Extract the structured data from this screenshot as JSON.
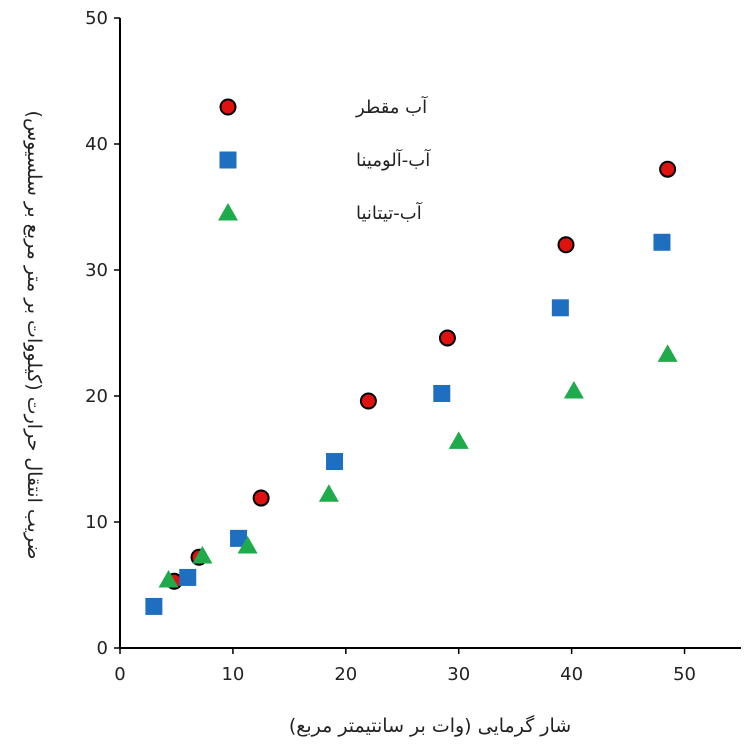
{
  "chart_data": {
    "type": "scatter",
    "xlabel": "شار گرمایی (وات بر سانتیمتر مربع)",
    "ylabel": "ضریب انتقال حرارت (کیلووات بر متر مربع بر سلسیوس)",
    "xlim": [
      0,
      55
    ],
    "ylim": [
      0,
      50
    ],
    "xticks": [
      0,
      10,
      20,
      30,
      40,
      50
    ],
    "yticks": [
      0,
      10,
      20,
      30,
      40,
      50
    ],
    "grid": false,
    "legend_position": "top-left",
    "series": [
      {
        "name": "آب مقطر",
        "marker": "circle",
        "color": "#e0120f",
        "points": [
          [
            4.8,
            5.3
          ],
          [
            7,
            7.2
          ],
          [
            12.5,
            11.9
          ],
          [
            22,
            19.6
          ],
          [
            29,
            24.6
          ],
          [
            39.5,
            32
          ],
          [
            48.5,
            38
          ]
        ]
      },
      {
        "name": "آب-آلومینا",
        "marker": "square",
        "color": "#1f6fc0",
        "points": [
          [
            3,
            3.3
          ],
          [
            6,
            5.6
          ],
          [
            10.5,
            8.7
          ],
          [
            19,
            14.8
          ],
          [
            28.5,
            20.2
          ],
          [
            39,
            27
          ],
          [
            48,
            32.2
          ]
        ]
      },
      {
        "name": "آب-تیتانیا",
        "marker": "triangle",
        "color": "#1faa4b",
        "points": [
          [
            4.3,
            5.4
          ],
          [
            7.3,
            7.3
          ],
          [
            11.3,
            8.1
          ],
          [
            18.5,
            12.2
          ],
          [
            30,
            16.4
          ],
          [
            40.2,
            20.4
          ],
          [
            48.5,
            23.3
          ]
        ]
      }
    ]
  }
}
